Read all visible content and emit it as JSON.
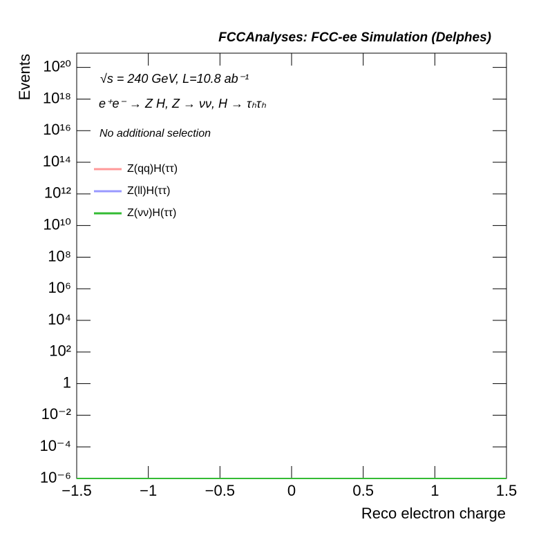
{
  "chart_data": {
    "type": "line",
    "title": "FCCAnalyses: FCC-ee Simulation (Delphes)",
    "annotations": [
      "√s = 240 GeV, L=10.8 ab⁻¹",
      "e⁺e⁻ → Z H, Z → νν, H → τₕτₕ",
      "No additional selection"
    ],
    "xlabel": "Reco electron charge",
    "ylabel": "Events",
    "x": [
      -1.5,
      1.5
    ],
    "series": [
      {
        "name": "Z(qq)H(ττ)",
        "color": "#ff9999",
        "values": [
          1e-06,
          1e-06
        ]
      },
      {
        "name": "Z(ll)H(ττ)",
        "color": "#9999ff",
        "values": [
          1e-06,
          1e-06
        ]
      },
      {
        "name": "Z(νν)H(ττ)",
        "color": "#33bb33",
        "values": [
          1e-06,
          1e-06
        ]
      }
    ],
    "xlim": [
      -1.5,
      1.5
    ],
    "xticks": [
      {
        "value": -1.5,
        "label": "−1.5"
      },
      {
        "value": -1,
        "label": "−1"
      },
      {
        "value": -0.5,
        "label": "−0.5"
      },
      0,
      0.5,
      1,
      1.5
    ],
    "ylim": [
      1e-06,
      8e+20
    ],
    "yscale": "log",
    "yticks": [
      {
        "value": 1e-06,
        "label": "10⁻⁶"
      },
      {
        "value": 0.0001,
        "label": "10⁻⁴"
      },
      {
        "value": 0.01,
        "label": "10⁻²"
      },
      1,
      {
        "value": 100.0,
        "label": "10²"
      },
      {
        "value": 10000.0,
        "label": "10⁴"
      },
      {
        "value": 1000000.0,
        "label": "10⁶"
      },
      {
        "value": 100000000.0,
        "label": "10⁸"
      },
      {
        "value": 10000000000.0,
        "label": "10¹⁰"
      },
      {
        "value": 1000000000000.0,
        "label": "10¹²"
      },
      {
        "value": 100000000000000.0,
        "label": "10¹⁴"
      },
      {
        "value": 1e+16,
        "label": "10¹⁶"
      },
      {
        "value": 1e+18,
        "label": "10¹⁸"
      },
      {
        "value": 1e+20,
        "label": "10²⁰"
      }
    ],
    "grid": false
  }
}
